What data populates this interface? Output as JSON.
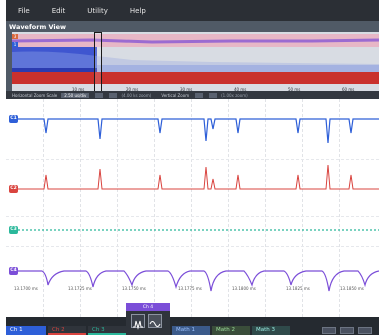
{
  "menu": [
    "File",
    "Edit",
    "Utility",
    "Help"
  ],
  "waveform_view": {
    "title": "Waveform View",
    "overview_ticks": [
      "10 ms",
      "20 ms",
      "30 ms",
      "40 ms",
      "50 ms",
      "60 ms"
    ]
  },
  "zoom_bar": {
    "horizontal_label": "Horizontal Zoom Scale",
    "horizontal_value": "2.50 us/div",
    "horizontal_paren": "(4.00 ks zoom)",
    "vertical_label": "Vertical Zoom",
    "vertical_paren": "(1.00x zoom)"
  },
  "channels": [
    {
      "id": "C1",
      "color": "#2e5fd8"
    },
    {
      "id": "C2",
      "color": "#d9443f"
    },
    {
      "id": "C3",
      "color": "#2bb89b"
    },
    {
      "id": "C4",
      "color": "#7b4ed8"
    }
  ],
  "x_ticks": [
    "13.1700 ms",
    "13.1725 ms",
    "13.1750 ms",
    "13.1775 ms",
    "13.1800 ms",
    "13.1825 ms",
    "13.1850 ms"
  ],
  "bottom": {
    "ch1": "Ch 1",
    "ch2": "Ch 2",
    "ch3": "Ch 3",
    "ch4_title": "Ch 4",
    "math1": "Math 1",
    "math2": "Math 2",
    "math3": "Math 3"
  }
}
